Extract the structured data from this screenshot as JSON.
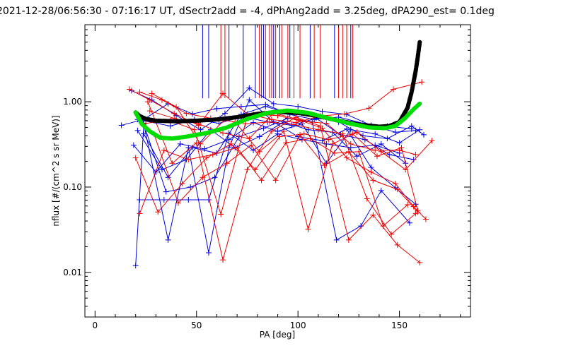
{
  "chart_data": {
    "type": "line",
    "title": "2021-12-28/06:56:30 - 07:16:17 UT, dSectr2add = -4, dPhAng2add = 3.25deg, dPA290_est=   0.1deg",
    "xlabel": "PA [deg]",
    "ylabel": "nflux [#/(cm^2 s sr MeV)]",
    "xlim": [
      -5,
      185
    ],
    "ylim": [
      0.003,
      8
    ],
    "yscale": "log",
    "xticks": [
      {
        "v": 0,
        "label": "0"
      },
      {
        "v": 50,
        "label": "50"
      },
      {
        "v": 100,
        "label": "100"
      },
      {
        "v": 150,
        "label": "150"
      }
    ],
    "yticks": [
      {
        "v": 0.01,
        "label": "0.01"
      },
      {
        "v": 0.1,
        "label": "0.10"
      },
      {
        "v": 1,
        "label": "1.00"
      }
    ],
    "colors": {
      "blue": "#0000dd",
      "red": "#ee0000",
      "black": "#000000",
      "green": "#00dd00"
    },
    "vlines": {
      "blue": [
        53,
        56,
        66,
        73,
        79,
        83,
        88,
        91,
        96,
        106,
        118,
        126
      ],
      "red": [
        62,
        64,
        81,
        82,
        84,
        86,
        87,
        89,
        92,
        95,
        98,
        101,
        108,
        111,
        120,
        122,
        124,
        127
      ]
    },
    "blue_traces": [
      [
        [
          13,
          0.53
        ],
        [
          24,
          0.62
        ],
        [
          36,
          0.95
        ],
        [
          48,
          0.72
        ],
        [
          60,
          0.83
        ],
        [
          72,
          0.88
        ],
        [
          84,
          0.93
        ],
        [
          96,
          0.71
        ],
        [
          108,
          0.62
        ],
        [
          120,
          0.66
        ],
        [
          132,
          0.56
        ],
        [
          144,
          0.52
        ],
        [
          156,
          0.48
        ]
      ],
      [
        [
          18,
          1.35
        ],
        [
          28,
          1.05
        ],
        [
          40,
          0.69
        ],
        [
          52,
          0.47
        ],
        [
          64,
          0.73
        ],
        [
          76,
          1.45
        ],
        [
          88,
          0.95
        ],
        [
          100,
          0.88
        ],
        [
          112,
          0.77
        ],
        [
          124,
          0.71
        ],
        [
          136,
          0.53
        ],
        [
          148,
          0.44
        ],
        [
          158,
          0.46
        ]
      ],
      [
        [
          19,
          0.31
        ],
        [
          30,
          0.15
        ],
        [
          42,
          0.32
        ],
        [
          54,
          0.28
        ],
        [
          66,
          0.36
        ],
        [
          78,
          0.57
        ],
        [
          90,
          0.45
        ],
        [
          102,
          0.55
        ],
        [
          114,
          0.19
        ],
        [
          126,
          0.47
        ],
        [
          138,
          0.42
        ],
        [
          150,
          0.33
        ],
        [
          160,
          0.47
        ]
      ],
      [
        [
          20,
          0.012
        ],
        [
          24,
          0.55
        ],
        [
          36,
          0.024
        ],
        [
          46,
          0.29
        ],
        [
          56,
          0.017
        ],
        [
          66,
          0.29
        ],
        [
          76,
          1.05
        ],
        [
          88,
          0.58
        ],
        [
          100,
          0.39
        ],
        [
          112,
          0.35
        ],
        [
          124,
          0.48
        ],
        [
          136,
          0.17
        ],
        [
          148,
          0.098
        ],
        [
          158,
          0.063
        ]
      ],
      [
        [
          21,
          0.46
        ],
        [
          33,
          0.16
        ],
        [
          45,
          0.21
        ],
        [
          57,
          0.47
        ],
        [
          69,
          0.29
        ],
        [
          81,
          0.39
        ],
        [
          93,
          0.58
        ],
        [
          105,
          0.47
        ],
        [
          117,
          0.44
        ],
        [
          129,
          0.23
        ],
        [
          141,
          0.32
        ],
        [
          153,
          0.19
        ]
      ],
      [
        [
          22,
          0.071
        ],
        [
          34,
          0.071
        ],
        [
          46,
          0.071
        ],
        [
          56,
          0.071
        ],
        [
          66,
          0.43
        ],
        [
          78,
          0.27
        ],
        [
          90,
          0.42
        ],
        [
          102,
          0.36
        ],
        [
          114,
          0.32
        ],
        [
          126,
          0.29
        ],
        [
          138,
          0.31
        ],
        [
          150,
          0.25
        ]
      ],
      [
        [
          23,
          0.65
        ],
        [
          35,
          0.088
        ],
        [
          47,
          0.1
        ],
        [
          59,
          0.13
        ],
        [
          71,
          0.39
        ],
        [
          83,
          0.49
        ],
        [
          95,
          0.64
        ],
        [
          107,
          0.58
        ],
        [
          119,
          0.024
        ],
        [
          131,
          0.035
        ],
        [
          141,
          0.091
        ],
        [
          155,
          0.038
        ]
      ],
      [
        [
          24,
          0.42
        ],
        [
          36,
          0.13
        ],
        [
          48,
          0.29
        ],
        [
          60,
          0.25
        ],
        [
          72,
          0.71
        ],
        [
          84,
          0.88
        ],
        [
          96,
          0.73
        ],
        [
          108,
          0.67
        ],
        [
          120,
          0.58
        ],
        [
          132,
          0.4
        ],
        [
          144,
          0.37
        ],
        [
          156,
          0.52
        ],
        [
          162,
          0.41
        ]
      ],
      [
        [
          21,
          0.62
        ],
        [
          37,
          0.52
        ],
        [
          49,
          0.62
        ],
        [
          61,
          0.56
        ],
        [
          73,
          0.67
        ],
        [
          85,
          0.58
        ],
        [
          97,
          0.53
        ],
        [
          109,
          0.64
        ],
        [
          121,
          0.41
        ],
        [
          133,
          0.36
        ],
        [
          145,
          0.24
        ],
        [
          157,
          0.21
        ]
      ]
    ],
    "red_traces": [
      [
        [
          17,
          1.4
        ],
        [
          27,
          1.05
        ],
        [
          39,
          0.73
        ],
        [
          51,
          0.53
        ],
        [
          63,
          1.25
        ],
        [
          75,
          0.72
        ],
        [
          87,
          0.62
        ],
        [
          99,
          0.57
        ],
        [
          111,
          0.68
        ],
        [
          123,
          0.72
        ],
        [
          135,
          0.84
        ],
        [
          147,
          1.4
        ],
        [
          161,
          1.7
        ]
      ],
      [
        [
          22,
          1.3
        ],
        [
          33,
          1.05
        ],
        [
          45,
          0.73
        ],
        [
          57,
          0.64
        ],
        [
          69,
          0.58
        ],
        [
          81,
          0.26
        ],
        [
          93,
          0.45
        ],
        [
          105,
          0.032
        ],
        [
          117,
          0.32
        ],
        [
          129,
          0.44
        ],
        [
          141,
          0.26
        ],
        [
          153,
          0.16
        ],
        [
          166,
          0.35
        ]
      ],
      [
        [
          20,
          0.22
        ],
        [
          31,
          0.051
        ],
        [
          43,
          0.11
        ],
        [
          55,
          0.22
        ],
        [
          67,
          0.32
        ],
        [
          79,
          0.16
        ],
        [
          91,
          0.39
        ],
        [
          103,
          0.42
        ],
        [
          115,
          0.36
        ],
        [
          127,
          0.42
        ],
        [
          139,
          0.23
        ],
        [
          151,
          0.29
        ],
        [
          159,
          0.053
        ]
      ],
      [
        [
          22,
          0.049
        ],
        [
          34,
          0.27
        ],
        [
          46,
          0.21
        ],
        [
          58,
          0.24
        ],
        [
          70,
          0.29
        ],
        [
          82,
          0.12
        ],
        [
          94,
          0.33
        ],
        [
          106,
          0.37
        ],
        [
          118,
          0.25
        ],
        [
          130,
          0.26
        ],
        [
          142,
          0.035
        ],
        [
          154,
          0.062
        ]
      ],
      [
        [
          25,
          0.56
        ],
        [
          37,
          0.6
        ],
        [
          49,
          0.47
        ],
        [
          62,
          0.048
        ],
        [
          74,
          0.55
        ],
        [
          86,
          0.58
        ],
        [
          98,
          0.54
        ],
        [
          110,
          0.47
        ],
        [
          122,
          0.42
        ],
        [
          134,
          0.073
        ],
        [
          146,
          0.028
        ],
        [
          158,
          0.049
        ]
      ],
      [
        [
          26,
          1.0
        ],
        [
          38,
          0.19
        ],
        [
          50,
          0.33
        ],
        [
          63,
          0.014
        ],
        [
          75,
          0.16
        ],
        [
          87,
          0.45
        ],
        [
          99,
          0.66
        ],
        [
          111,
          0.52
        ],
        [
          125,
          0.024
        ],
        [
          137,
          0.047
        ],
        [
          149,
          0.021
        ],
        [
          160,
          0.013
        ]
      ],
      [
        [
          27,
          0.78
        ],
        [
          39,
          0.64
        ],
        [
          51,
          0.55
        ],
        [
          63,
          0.43
        ],
        [
          76,
          0.37
        ],
        [
          88,
          0.74
        ],
        [
          100,
          0.62
        ],
        [
          112,
          0.49
        ],
        [
          124,
          0.22
        ],
        [
          136,
          0.15
        ],
        [
          148,
          0.11
        ],
        [
          157,
          0.059
        ],
        [
          163,
          0.042
        ]
      ],
      [
        [
          28,
          1.25
        ],
        [
          40,
          0.87
        ],
        [
          52,
          0.32
        ],
        [
          64,
          0.62
        ],
        [
          78,
          0.71
        ],
        [
          90,
          0.69
        ],
        [
          102,
          0.59
        ],
        [
          114,
          0.56
        ],
        [
          126,
          0.32
        ],
        [
          138,
          0.27
        ],
        [
          150,
          0.27
        ],
        [
          158,
          0.24
        ]
      ],
      [
        [
          29,
          0.42
        ],
        [
          41,
          0.065
        ],
        [
          53,
          0.13
        ],
        [
          65,
          0.19
        ],
        [
          77,
          0.31
        ],
        [
          89,
          0.12
        ],
        [
          101,
          0.41
        ],
        [
          113,
          0.18
        ],
        [
          125,
          0.26
        ],
        [
          137,
          0.12
        ],
        [
          149,
          0.094
        ],
        [
          159,
          0.051
        ]
      ]
    ],
    "black_fit": [
      [
        20,
        0.75
      ],
      [
        22,
        0.68
      ],
      [
        25,
        0.63
      ],
      [
        30,
        0.6
      ],
      [
        40,
        0.59
      ],
      [
        50,
        0.6
      ],
      [
        60,
        0.62
      ],
      [
        70,
        0.66
      ],
      [
        80,
        0.72
      ],
      [
        90,
        0.76
      ],
      [
        100,
        0.74
      ],
      [
        110,
        0.68
      ],
      [
        120,
        0.6
      ],
      [
        130,
        0.54
      ],
      [
        140,
        0.51
      ],
      [
        145,
        0.52
      ],
      [
        150,
        0.58
      ],
      [
        154,
        0.85
      ],
      [
        156,
        1.3
      ],
      [
        158,
        2.3
      ],
      [
        159,
        3.3
      ],
      [
        160,
        5.0
      ]
    ],
    "green_fit": [
      [
        20,
        0.75
      ],
      [
        23,
        0.55
      ],
      [
        27,
        0.45
      ],
      [
        32,
        0.38
      ],
      [
        38,
        0.37
      ],
      [
        45,
        0.39
      ],
      [
        55,
        0.43
      ],
      [
        65,
        0.5
      ],
      [
        75,
        0.63
      ],
      [
        85,
        0.74
      ],
      [
        95,
        0.79
      ],
      [
        105,
        0.74
      ],
      [
        115,
        0.64
      ],
      [
        125,
        0.56
      ],
      [
        135,
        0.5
      ],
      [
        143,
        0.49
      ],
      [
        148,
        0.52
      ],
      [
        153,
        0.65
      ],
      [
        157,
        0.82
      ],
      [
        160,
        0.95
      ]
    ]
  }
}
